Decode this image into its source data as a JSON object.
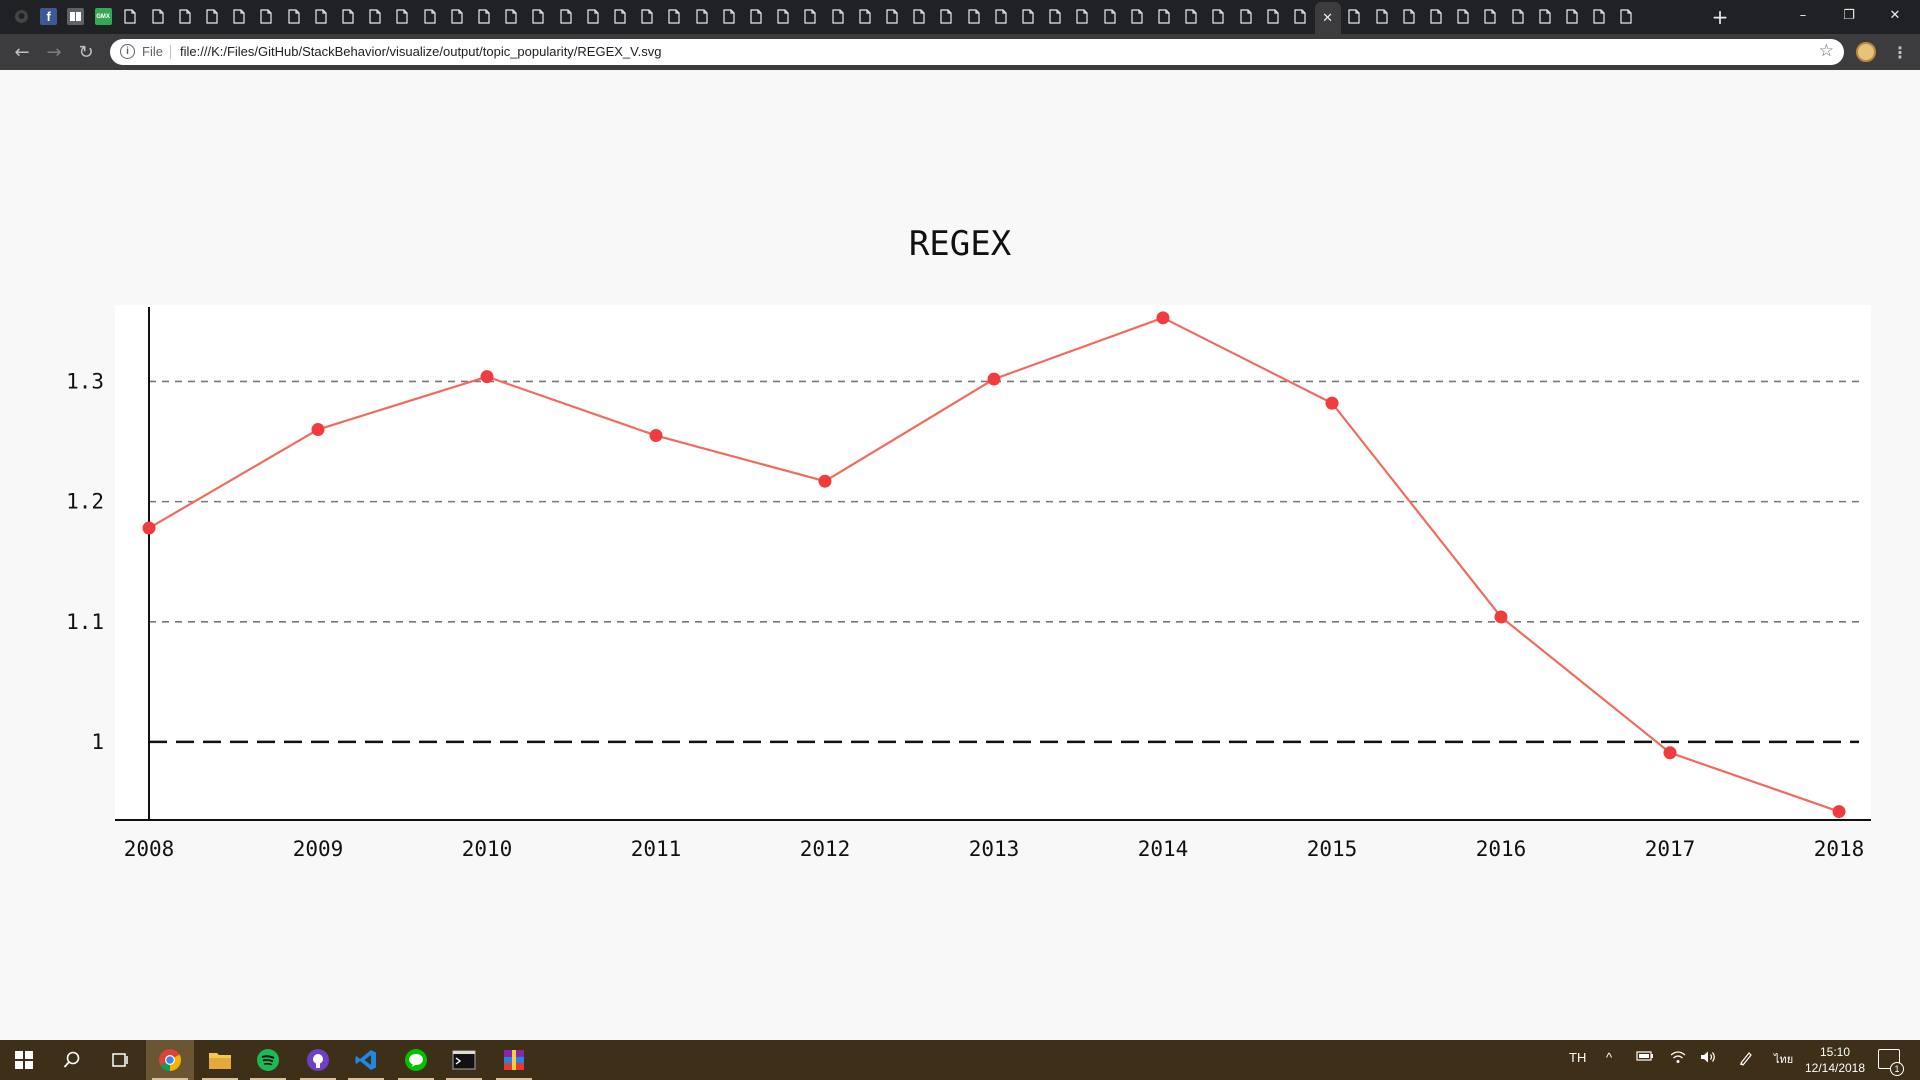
{
  "browser": {
    "tab_strip": {
      "tab_count": 60,
      "active_tab_index": 48,
      "active_tab_close_glyph": "✕",
      "new_tab_glyph": "+"
    },
    "window_controls": {
      "minimize_glyph": "–",
      "restore_glyph": "❐",
      "close_glyph": "✕"
    },
    "omnibox": {
      "security_label": "File",
      "url": "file:///K:/Files/GitHub/StackBehavior/visualize/output/topic_popularity/REGEX_V.svg"
    }
  },
  "chart_data": {
    "type": "line",
    "title": "REGEX",
    "xlabel": "",
    "ylabel": "",
    "x": [
      "2008",
      "2009",
      "2010",
      "2011",
      "2012",
      "2013",
      "2014",
      "2015",
      "2016",
      "2017",
      "2018"
    ],
    "series": [
      {
        "values": [
          1.178,
          1.26,
          1.304,
          1.255,
          1.217,
          1.302,
          1.353,
          1.282,
          1.104,
          0.991,
          0.942
        ]
      }
    ],
    "ylim": [
      0.935,
      1.362
    ],
    "yticks": [
      1,
      1.1,
      1.2,
      1.3
    ],
    "ytick_labels": [
      "1",
      "1.1",
      "1.2",
      "1.3"
    ],
    "reference_line": 1,
    "grid": true,
    "colors": {
      "series": "#f03c3c",
      "line": "#f16b5f",
      "grid": "#777777",
      "axis": "#111111"
    }
  },
  "taskbar": {
    "apps": [
      "windows-start",
      "search",
      "task-view",
      "chrome",
      "file-explorer",
      "spotify",
      "github-desktop",
      "vscode",
      "line",
      "terminal",
      "winrar"
    ],
    "language": "TH",
    "ime": "ไทย",
    "clock_time": "15:10",
    "clock_date": "12/14/2018",
    "notification_count": "1"
  }
}
